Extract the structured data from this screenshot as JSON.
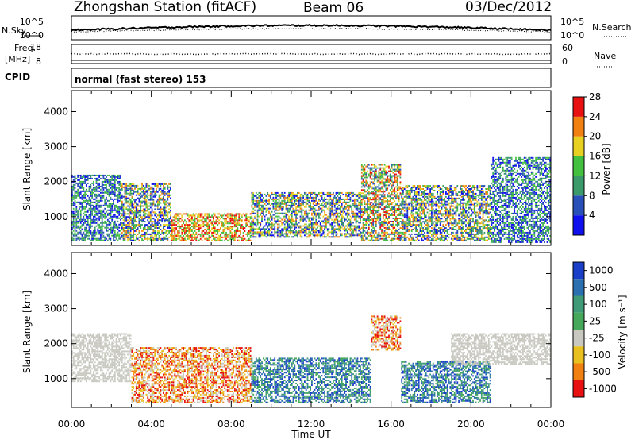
{
  "header": {
    "station": "Zhongshan Station (fitACF)",
    "beam": "Beam 06",
    "date": "03/Dec/2012"
  },
  "strip_labels": {
    "nsky": "N.Sky",
    "nsearch": "N.Search",
    "freq_line1": "Freq.",
    "freq_line2": "[MHz]",
    "nave": "Nave",
    "cpid": "CPID",
    "mode": "normal (fast stereo) 153",
    "nsky_ticks": [
      "10^5",
      "10^0"
    ],
    "nsearch_ticks": [
      "10^5",
      "10^0"
    ],
    "freq_ticks": [
      "18",
      "8"
    ],
    "nave_ticks": [
      "60",
      "0"
    ]
  },
  "chart_data": [
    {
      "type": "heatmap",
      "name": "power",
      "ylabel": "Slant Range [km]",
      "xlabel": "Time UT",
      "xlim": [
        0,
        24
      ],
      "ylim": [
        180,
        4600
      ],
      "x_ticks": [
        "00:00",
        "04:00",
        "08:00",
        "12:00",
        "16:00",
        "20:00",
        "00:00"
      ],
      "y_ticks": [
        1000,
        2000,
        3000,
        4000
      ],
      "colorbar": {
        "label": "Power [dB]",
        "ticks": [
          "4",
          "8",
          "12",
          "16",
          "20",
          "24",
          "28"
        ],
        "colors": [
          "#1010ee",
          "#2850b8",
          "#3a9a6a",
          "#44c040",
          "#e8d020",
          "#f08010",
          "#e81010"
        ]
      },
      "regions": [
        {
          "t": [
            0.0,
            2.5
          ],
          "r": [
            300,
            2200
          ],
          "level": "mixed-low"
        },
        {
          "t": [
            2.5,
            5.0
          ],
          "r": [
            300,
            1950
          ],
          "level": "mixed"
        },
        {
          "t": [
            5.0,
            9.0
          ],
          "r": [
            300,
            1100
          ],
          "level": "high"
        },
        {
          "t": [
            9.0,
            14.5
          ],
          "r": [
            400,
            1700
          ],
          "level": "mixed"
        },
        {
          "t": [
            14.5,
            16.5
          ],
          "r": [
            300,
            2500
          ],
          "level": "mixed-high"
        },
        {
          "t": [
            16.5,
            21.0
          ],
          "r": [
            300,
            1900
          ],
          "level": "mixed"
        },
        {
          "t": [
            21.0,
            24.0
          ],
          "r": [
            250,
            2700
          ],
          "level": "mixed-low"
        }
      ]
    },
    {
      "type": "heatmap",
      "name": "velocity",
      "ylabel": "Slant Range [km]",
      "xlabel": "Time UT",
      "xlim": [
        0,
        24
      ],
      "ylim": [
        180,
        4600
      ],
      "x_ticks": [
        "00:00",
        "04:00",
        "08:00",
        "12:00",
        "16:00",
        "20:00",
        "00:00"
      ],
      "y_ticks": [
        1000,
        2000,
        3000,
        4000
      ],
      "colorbar": {
        "label": "Velocity [m s⁻¹]",
        "ticks": [
          "1000",
          "500",
          "100",
          "25",
          "-25",
          "-100",
          "-500",
          "-1000"
        ],
        "colors": [
          "#1a3ec8",
          "#2a70b0",
          "#3f9a78",
          "#46a85a",
          "#c8c8c0",
          "#e8c020",
          "#f08010",
          "#e81010"
        ]
      },
      "regions": [
        {
          "t": [
            0.0,
            3.0
          ],
          "r": [
            900,
            2300
          ],
          "level": "ground"
        },
        {
          "t": [
            3.0,
            9.0
          ],
          "r": [
            300,
            1900
          ],
          "level": "negative"
        },
        {
          "t": [
            9.0,
            15.0
          ],
          "r": [
            300,
            1600
          ],
          "level": "positive"
        },
        {
          "t": [
            15.0,
            16.5
          ],
          "r": [
            1800,
            2800
          ],
          "level": "negative"
        },
        {
          "t": [
            16.5,
            21.0
          ],
          "r": [
            300,
            1500
          ],
          "level": "positive"
        },
        {
          "t": [
            19.0,
            24.0
          ],
          "r": [
            1400,
            2300
          ],
          "level": "ground"
        }
      ]
    }
  ]
}
